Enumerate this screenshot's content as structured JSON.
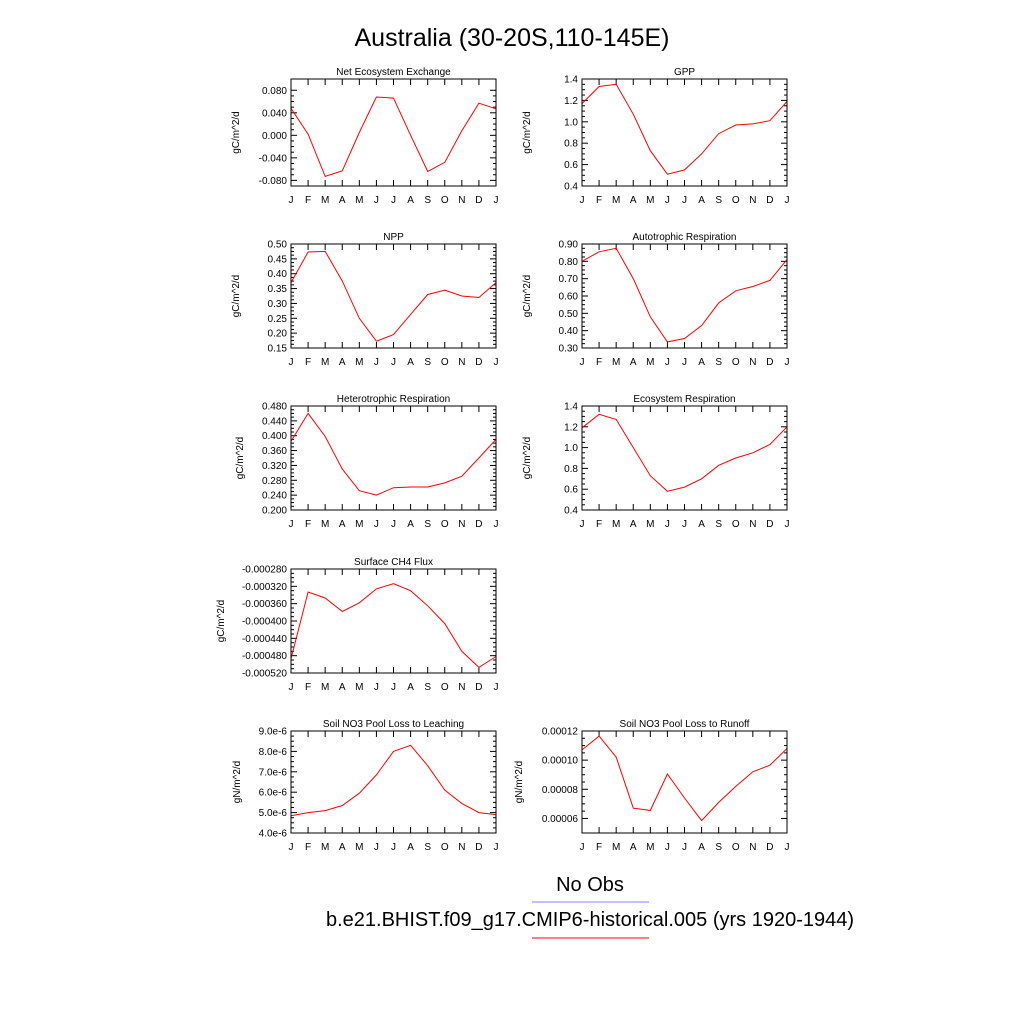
{
  "title": "Australia (30-20S,110-145E)",
  "months": [
    "J",
    "F",
    "M",
    "A",
    "M",
    "J",
    "J",
    "A",
    "S",
    "O",
    "N",
    "D",
    "J"
  ],
  "legend": {
    "obs_label": "No Obs",
    "obs_color": "#8080ff",
    "model_label": "b.e21.BHIST.f09_g17.CMIP6-historical.005 (yrs 1920-1944)",
    "model_color": "#ff0000"
  },
  "line_color": "#ff0000",
  "chart_data": [
    {
      "type": "line",
      "title": "Net Ecosystem Exchange",
      "ylabel": "gC/m^2/d",
      "ylim": [
        -0.09,
        0.1
      ],
      "yticks": [
        -0.08,
        -0.04,
        0.0,
        0.04,
        0.08
      ],
      "ytick_labels": [
        "-0.080",
        "-0.040",
        "0.000",
        "0.040",
        "0.080"
      ],
      "values": [
        0.048,
        0.002,
        -0.073,
        -0.063,
        0.005,
        0.068,
        0.066,
        0.0,
        -0.064,
        -0.048,
        0.008,
        0.057,
        0.047
      ]
    },
    {
      "type": "line",
      "title": "GPP",
      "ylabel": "gC/m^2/d",
      "ylim": [
        0.4,
        1.4
      ],
      "yticks": [
        0.4,
        0.6,
        0.8,
        1.0,
        1.2,
        1.4
      ],
      "ytick_labels": [
        "0.4",
        "0.6",
        "0.8",
        "1.0",
        "1.2",
        "1.4"
      ],
      "values": [
        1.17,
        1.33,
        1.35,
        1.07,
        0.73,
        0.51,
        0.55,
        0.7,
        0.89,
        0.97,
        0.98,
        1.01,
        1.19
      ]
    },
    {
      "type": "line",
      "title": "NPP",
      "ylabel": "gC/m^2/d",
      "ylim": [
        0.15,
        0.5
      ],
      "yticks": [
        0.15,
        0.2,
        0.25,
        0.3,
        0.35,
        0.4,
        0.45,
        0.5
      ],
      "ytick_labels": [
        "0.15",
        "0.20",
        "0.25",
        "0.30",
        "0.35",
        "0.40",
        "0.45",
        "0.50"
      ],
      "values": [
        0.37,
        0.473,
        0.475,
        0.375,
        0.25,
        0.173,
        0.195,
        0.263,
        0.33,
        0.345,
        0.325,
        0.32,
        0.37
      ]
    },
    {
      "type": "line",
      "title": "Autotrophic Respiration",
      "ylabel": "gC/m^2/d",
      "ylim": [
        0.3,
        0.9
      ],
      "yticks": [
        0.3,
        0.4,
        0.5,
        0.6,
        0.7,
        0.8,
        0.9
      ],
      "ytick_labels": [
        "0.30",
        "0.40",
        "0.50",
        "0.60",
        "0.70",
        "0.80",
        "0.90"
      ],
      "values": [
        0.8,
        0.855,
        0.875,
        0.7,
        0.48,
        0.335,
        0.355,
        0.43,
        0.56,
        0.63,
        0.655,
        0.69,
        0.81
      ]
    },
    {
      "type": "line",
      "title": "Heterotrophic Respiration",
      "ylabel": "gC/m^2/d",
      "ylim": [
        0.2,
        0.48
      ],
      "yticks": [
        0.2,
        0.24,
        0.28,
        0.32,
        0.36,
        0.4,
        0.44,
        0.48
      ],
      "ytick_labels": [
        "0.200",
        "0.240",
        "0.280",
        "0.320",
        "0.360",
        "0.400",
        "0.440",
        "0.480"
      ],
      "values": [
        0.385,
        0.46,
        0.398,
        0.31,
        0.252,
        0.24,
        0.26,
        0.262,
        0.262,
        0.273,
        0.291,
        0.34,
        0.39
      ]
    },
    {
      "type": "line",
      "title": "Ecosystem Respiration",
      "ylabel": "gC/m^2/d",
      "ylim": [
        0.4,
        1.4
      ],
      "yticks": [
        0.4,
        0.6,
        0.8,
        1.0,
        1.2,
        1.4
      ],
      "ytick_labels": [
        "0.4",
        "0.6",
        "0.8",
        "1.0",
        "1.2",
        "1.4"
      ],
      "values": [
        1.19,
        1.32,
        1.27,
        1.0,
        0.73,
        0.58,
        0.62,
        0.7,
        0.83,
        0.9,
        0.95,
        1.03,
        1.2
      ]
    },
    {
      "type": "line",
      "title": "Surface CH4 Flux",
      "ylabel": "gC/m^2/d",
      "ylim": [
        -0.00052,
        -0.00028
      ],
      "yticks": [
        -0.00052,
        -0.00048,
        -0.00044,
        -0.0004,
        -0.00036,
        -0.00032,
        -0.00028
      ],
      "ytick_labels": [
        "-0.000520",
        "-0.000480",
        "-0.000440",
        "-0.000400",
        "-0.000360",
        "-0.000320",
        "-0.000280"
      ],
      "values": [
        -0.000487,
        -0.000333,
        -0.000347,
        -0.000378,
        -0.000358,
        -0.000326,
        -0.000314,
        -0.00033,
        -0.000365,
        -0.000406,
        -0.00047,
        -0.000507,
        -0.000482
      ]
    },
    {
      "type": "line",
      "title": "Soil NO3 Pool Loss to Leaching",
      "ylabel": "gN/m^2/d",
      "ylim": [
        4e-06,
        9e-06
      ],
      "yticks": [
        4e-06,
        5e-06,
        6e-06,
        7e-06,
        8e-06,
        9e-06
      ],
      "ytick_labels": [
        "4.0e-6",
        "5.0e-6",
        "6.0e-6",
        "7.0e-6",
        "8.0e-6",
        "9.0e-6"
      ],
      "values": [
        4.85e-06,
        5e-06,
        5.1e-06,
        5.35e-06,
        5.95e-06,
        6.85e-06,
        8e-06,
        8.3e-06,
        7.3e-06,
        6.1e-06,
        5.45e-06,
        5e-06,
        4.9e-06
      ]
    },
    {
      "type": "line",
      "title": "Soil NO3 Pool Loss to Runoff",
      "ylabel": "gN/m^2/d",
      "ylim": [
        5e-05,
        0.00012
      ],
      "yticks": [
        6e-05,
        8e-05,
        0.0001,
        0.00012
      ],
      "ytick_labels": [
        "0.00006",
        "0.00008",
        "0.00010",
        "0.00012"
      ],
      "values": [
        0.000107,
        0.0001165,
        0.000102,
        6.7e-05,
        6.55e-05,
        9.05e-05,
        7.4e-05,
        5.85e-05,
        7.1e-05,
        8.2e-05,
        9.2e-05,
        9.65e-05,
        0.000108
      ]
    }
  ]
}
